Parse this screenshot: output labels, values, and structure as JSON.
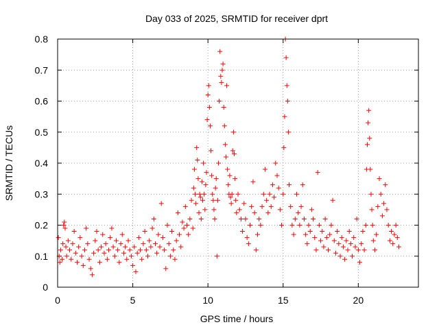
{
  "chart_data": {
    "type": "scatter",
    "title": "Day 033 of 2025, SRMTID for receiver dprt",
    "xlabel": "GPS time / hours",
    "ylabel": "SRMTID / TECUs",
    "xlim": [
      0,
      24
    ],
    "ylim": [
      0,
      0.8
    ],
    "xticks": [
      0,
      5,
      10,
      15,
      20
    ],
    "xtick_labels": [
      "0",
      "5",
      "10",
      "15",
      "20"
    ],
    "yticks": [
      0,
      0.1,
      0.2,
      0.3,
      0.4,
      0.5,
      0.6,
      0.7,
      0.8
    ],
    "ytick_labels": [
      "0",
      "0.1",
      "0.2",
      "0.3",
      "0.4",
      "0.5",
      "0.6",
      "0.7",
      "0.8"
    ],
    "grid": true,
    "marker": "+",
    "color": "#ff0000",
    "series": [
      {
        "name": "SRMTID",
        "points": [
          [
            0.05,
            0.16
          ],
          [
            0.1,
            0.1
          ],
          [
            0.15,
            0.08
          ],
          [
            0.2,
            0.12
          ],
          [
            0.3,
            0.09
          ],
          [
            0.35,
            0.14
          ],
          [
            0.4,
            0.2
          ],
          [
            0.45,
            0.21
          ],
          [
            0.5,
            0.19
          ],
          [
            0.55,
            0.13
          ],
          [
            0.6,
            0.1
          ],
          [
            0.7,
            0.15
          ],
          [
            0.8,
            0.12
          ],
          [
            0.9,
            0.09
          ],
          [
            1.0,
            0.14
          ],
          [
            1.1,
            0.18
          ],
          [
            1.2,
            0.11
          ],
          [
            1.3,
            0.08
          ],
          [
            1.4,
            0.13
          ],
          [
            1.5,
            0.16
          ],
          [
            1.6,
            0.1
          ],
          [
            1.7,
            0.07
          ],
          [
            1.8,
            0.12
          ],
          [
            1.9,
            0.19
          ],
          [
            2.0,
            0.14
          ],
          [
            2.1,
            0.09
          ],
          [
            2.2,
            0.06
          ],
          [
            2.3,
            0.04
          ],
          [
            2.4,
            0.11
          ],
          [
            2.5,
            0.15
          ],
          [
            2.6,
            0.18
          ],
          [
            2.7,
            0.12
          ],
          [
            2.8,
            0.08
          ],
          [
            2.9,
            0.13
          ],
          [
            3.0,
            0.17
          ],
          [
            3.1,
            0.11
          ],
          [
            3.2,
            0.14
          ],
          [
            3.3,
            0.09
          ],
          [
            3.4,
            0.12
          ],
          [
            3.5,
            0.16
          ],
          [
            3.6,
            0.19
          ],
          [
            3.7,
            0.13
          ],
          [
            3.8,
            0.1
          ],
          [
            3.9,
            0.15
          ],
          [
            4.0,
            0.12
          ],
          [
            4.1,
            0.08
          ],
          [
            4.2,
            0.14
          ],
          [
            4.3,
            0.17
          ],
          [
            4.4,
            0.11
          ],
          [
            4.5,
            0.13
          ],
          [
            4.6,
            0.09
          ],
          [
            4.7,
            0.15
          ],
          [
            4.8,
            0.12
          ],
          [
            4.9,
            0.1
          ],
          [
            5.0,
            0.07
          ],
          [
            5.1,
            0.13
          ],
          [
            5.2,
            0.05
          ],
          [
            5.3,
            0.11
          ],
          [
            5.4,
            0.16
          ],
          [
            5.5,
            0.12
          ],
          [
            5.6,
            0.09
          ],
          [
            5.7,
            0.14
          ],
          [
            5.8,
            0.18
          ],
          [
            5.9,
            0.12
          ],
          [
            6.0,
            0.1
          ],
          [
            6.1,
            0.15
          ],
          [
            6.2,
            0.13
          ],
          [
            6.3,
            0.19
          ],
          [
            6.4,
            0.22
          ],
          [
            6.5,
            0.14
          ],
          [
            6.6,
            0.11
          ],
          [
            6.7,
            0.17
          ],
          [
            6.8,
            0.13
          ],
          [
            6.9,
            0.27
          ],
          [
            7.0,
            0.16
          ],
          [
            7.1,
            0.12
          ],
          [
            7.2,
            0.06
          ],
          [
            7.3,
            0.2
          ],
          [
            7.4,
            0.14
          ],
          [
            7.5,
            0.1
          ],
          [
            7.6,
            0.18
          ],
          [
            7.7,
            0.12
          ],
          [
            7.8,
            0.09
          ],
          [
            7.9,
            0.15
          ],
          [
            8.0,
            0.24
          ],
          [
            8.1,
            0.17
          ],
          [
            8.2,
            0.13
          ],
          [
            8.3,
            0.21
          ],
          [
            8.4,
            0.19
          ],
          [
            8.5,
            0.26
          ],
          [
            8.6,
            0.2
          ],
          [
            8.7,
            0.17
          ],
          [
            8.8,
            0.22
          ],
          [
            8.9,
            0.28
          ],
          [
            9.0,
            0.19
          ],
          [
            9.05,
            0.32
          ],
          [
            9.1,
            0.38
          ],
          [
            9.15,
            0.3
          ],
          [
            9.2,
            0.27
          ],
          [
            9.25,
            0.45
          ],
          [
            9.3,
            0.41
          ],
          [
            9.35,
            0.35
          ],
          [
            9.4,
            0.24
          ],
          [
            9.45,
            0.3
          ],
          [
            9.5,
            0.29
          ],
          [
            9.55,
            0.22
          ],
          [
            9.6,
            0.34
          ],
          [
            9.65,
            0.28
          ],
          [
            9.7,
            0.4
          ],
          [
            9.75,
            0.3
          ],
          [
            9.8,
            0.25
          ],
          [
            9.85,
            0.33
          ],
          [
            9.9,
            0.37
          ],
          [
            9.95,
            0.54
          ],
          [
            10.0,
            0.62
          ],
          [
            10.05,
            0.65
          ],
          [
            10.1,
            0.58
          ],
          [
            10.15,
            0.52
          ],
          [
            10.2,
            0.44
          ],
          [
            10.25,
            0.36
          ],
          [
            10.3,
            0.3
          ],
          [
            10.35,
            0.28
          ],
          [
            10.4,
            0.25
          ],
          [
            10.45,
            0.22
          ],
          [
            10.5,
            0.32
          ],
          [
            10.55,
            0.35
          ],
          [
            10.6,
            0.1
          ],
          [
            10.65,
            0.28
          ],
          [
            10.7,
            0.4
          ],
          [
            10.75,
            0.6
          ],
          [
            10.8,
            0.76
          ],
          [
            10.85,
            0.68
          ],
          [
            10.9,
            0.66
          ],
          [
            10.95,
            0.7
          ],
          [
            11.0,
            0.72
          ],
          [
            11.05,
            0.58
          ],
          [
            11.1,
            0.52
          ],
          [
            11.15,
            0.46
          ],
          [
            11.2,
            0.42
          ],
          [
            11.25,
            0.65
          ],
          [
            11.3,
            0.38
          ],
          [
            11.35,
            0.33
          ],
          [
            11.4,
            0.3
          ],
          [
            11.45,
            0.36
          ],
          [
            11.5,
            0.29
          ],
          [
            11.55,
            0.27
          ],
          [
            11.6,
            0.3
          ],
          [
            11.65,
            0.44
          ],
          [
            11.7,
            0.5
          ],
          [
            11.75,
            0.43
          ],
          [
            11.8,
            0.35
          ],
          [
            11.85,
            0.28
          ],
          [
            11.9,
            0.24
          ],
          [
            12.0,
            0.3
          ],
          [
            12.1,
            0.25
          ],
          [
            12.2,
            0.22
          ],
          [
            12.3,
            0.18
          ],
          [
            12.4,
            0.27
          ],
          [
            12.5,
            0.22
          ],
          [
            12.6,
            0.16
          ],
          [
            12.7,
            0.14
          ],
          [
            12.8,
            0.2
          ],
          [
            12.9,
            0.26
          ],
          [
            13.0,
            0.34
          ],
          [
            13.1,
            0.24
          ],
          [
            13.2,
            0.12
          ],
          [
            13.3,
            0.17
          ],
          [
            13.4,
            0.22
          ],
          [
            13.5,
            0.2
          ],
          [
            13.6,
            0.26
          ],
          [
            13.7,
            0.3
          ],
          [
            13.8,
            0.38
          ],
          [
            13.9,
            0.28
          ],
          [
            14.0,
            0.24
          ],
          [
            14.1,
            0.3
          ],
          [
            14.2,
            0.26
          ],
          [
            14.3,
            0.33
          ],
          [
            14.4,
            0.29
          ],
          [
            14.5,
            0.4
          ],
          [
            14.6,
            0.36
          ],
          [
            14.7,
            0.32
          ],
          [
            14.8,
            0.25
          ],
          [
            14.9,
            0.2
          ],
          [
            15.0,
            0.3
          ],
          [
            15.05,
            0.45
          ],
          [
            15.1,
            0.55
          ],
          [
            15.15,
            0.8
          ],
          [
            15.2,
            0.74
          ],
          [
            15.25,
            0.65
          ],
          [
            15.3,
            0.6
          ],
          [
            15.35,
            0.5
          ],
          [
            15.4,
            0.33
          ],
          [
            15.5,
            0.26
          ],
          [
            15.6,
            0.2
          ],
          [
            15.7,
            0.17
          ],
          [
            15.8,
            0.22
          ],
          [
            15.9,
            0.3
          ],
          [
            16.0,
            0.24
          ],
          [
            16.1,
            0.2
          ],
          [
            16.2,
            0.26
          ],
          [
            16.3,
            0.33
          ],
          [
            16.4,
            0.22
          ],
          [
            16.5,
            0.17
          ],
          [
            16.6,
            0.14
          ],
          [
            16.7,
            0.2
          ],
          [
            16.8,
            0.18
          ],
          [
            16.9,
            0.25
          ],
          [
            17.0,
            0.22
          ],
          [
            17.1,
            0.16
          ],
          [
            17.2,
            0.12
          ],
          [
            17.3,
            0.37
          ],
          [
            17.4,
            0.2
          ],
          [
            17.5,
            0.15
          ],
          [
            17.6,
            0.18
          ],
          [
            17.7,
            0.13
          ],
          [
            17.8,
            0.22
          ],
          [
            17.9,
            0.16
          ],
          [
            18.0,
            0.12
          ],
          [
            18.1,
            0.17
          ],
          [
            18.2,
            0.2
          ],
          [
            18.3,
            0.28
          ],
          [
            18.4,
            0.15
          ],
          [
            18.5,
            0.11
          ],
          [
            18.6,
            0.18
          ],
          [
            18.7,
            0.14
          ],
          [
            18.8,
            0.1
          ],
          [
            18.9,
            0.16
          ],
          [
            19.0,
            0.13
          ],
          [
            19.1,
            0.09
          ],
          [
            19.2,
            0.15
          ],
          [
            19.3,
            0.12
          ],
          [
            19.4,
            0.18
          ],
          [
            19.5,
            0.14
          ],
          [
            19.6,
            0.1
          ],
          [
            19.7,
            0.16
          ],
          [
            19.8,
            0.13
          ],
          [
            19.9,
            0.22
          ],
          [
            20.0,
            0.12
          ],
          [
            20.1,
            0.08
          ],
          [
            20.2,
            0.14
          ],
          [
            20.3,
            0.18
          ],
          [
            20.4,
            0.12
          ],
          [
            20.5,
            0.2
          ],
          [
            20.55,
            0.38
          ],
          [
            20.6,
            0.46
          ],
          [
            20.65,
            0.53
          ],
          [
            20.7,
            0.57
          ],
          [
            20.75,
            0.48
          ],
          [
            20.8,
            0.38
          ],
          [
            20.85,
            0.3
          ],
          [
            20.9,
            0.25
          ],
          [
            20.95,
            0.2
          ],
          [
            21.0,
            0.15
          ],
          [
            21.1,
            0.12
          ],
          [
            21.2,
            0.17
          ],
          [
            21.3,
            0.26
          ],
          [
            21.4,
            0.35
          ],
          [
            21.5,
            0.3
          ],
          [
            21.6,
            0.23
          ],
          [
            21.7,
            0.27
          ],
          [
            21.8,
            0.33
          ],
          [
            21.9,
            0.25
          ],
          [
            22.0,
            0.2
          ],
          [
            22.1,
            0.15
          ],
          [
            22.2,
            0.18
          ],
          [
            22.3,
            0.14
          ],
          [
            22.4,
            0.17
          ],
          [
            22.5,
            0.2
          ],
          [
            22.6,
            0.16
          ],
          [
            22.7,
            0.13
          ]
        ]
      }
    ]
  }
}
